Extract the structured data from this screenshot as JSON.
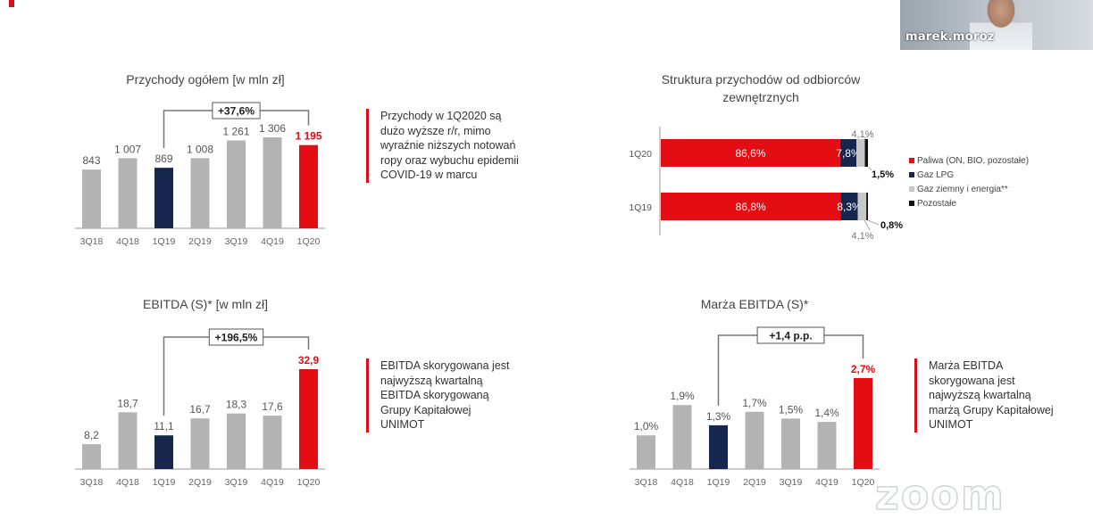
{
  "colors": {
    "grey": "#b3b3b3",
    "navy": "#17264f",
    "red": "#e30d13",
    "lightgrey": "#c8c8c8",
    "black": "#111111"
  },
  "camera": {
    "name": "marek.moroz"
  },
  "watermark": "zoom",
  "chart_data": [
    {
      "type": "bar",
      "title": "Przychody ogółem [w mln zł]",
      "categories": [
        "3Q18",
        "4Q18",
        "1Q19",
        "2Q19",
        "3Q19",
        "4Q19",
        "1Q20"
      ],
      "values": [
        843,
        1007,
        869,
        1008,
        1261,
        1306,
        1195
      ],
      "labels": [
        "843",
        "1 007",
        "869",
        "1 008",
        "1 261",
        "1 306",
        "1 195"
      ],
      "highlight": {
        "navy": 2,
        "red": 6
      },
      "annotation": "+37,6%",
      "callout": [
        "Przychody w 1Q2020 są",
        "dużo wyższe r/r, mimo",
        "wyraźnie niższych notowań",
        "ropy oraz wybuchu epidemii",
        "COVID-19 w marcu"
      ]
    },
    {
      "type": "stacked-bar-horizontal",
      "title": [
        "Struktura przychodów od odbiorców",
        "zewnętrznych"
      ],
      "categories": [
        "1Q20",
        "1Q19"
      ],
      "series": [
        {
          "name": "Paliwa (ON, BIO, pozostałe)",
          "values": [
            86.6,
            86.8
          ],
          "labels": [
            "86,6%",
            "86,8%"
          ]
        },
        {
          "name": "Gaz LPG",
          "values": [
            7.8,
            8.3
          ],
          "labels": [
            "7,8%",
            "8,3%"
          ]
        },
        {
          "name": "Gaz ziemny i energia**",
          "values": [
            4.1,
            4.1
          ],
          "labels": [
            "4,1%",
            "4,1%"
          ]
        },
        {
          "name": "Pozostałe",
          "values": [
            1.5,
            0.8
          ],
          "labels": [
            "1,5%",
            "0,8%"
          ]
        }
      ]
    },
    {
      "type": "bar",
      "title": "EBITDA (S)* [w mln zł]",
      "categories": [
        "3Q18",
        "4Q18",
        "1Q19",
        "2Q19",
        "3Q19",
        "4Q19",
        "1Q20"
      ],
      "values": [
        8.2,
        18.7,
        11.1,
        16.7,
        18.3,
        17.6,
        32.9
      ],
      "labels": [
        "8,2",
        "18,7",
        "11,1",
        "16,7",
        "18,3",
        "17,6",
        "32,9"
      ],
      "highlight": {
        "navy": 2,
        "red": 6
      },
      "annotation": "+196,5%",
      "callout": [
        "EBITDA skorygowana jest",
        "najwyższą kwartalną",
        "EBITDA skorygowaną",
        "Grupy Kapitałowej",
        "UNIMOT"
      ]
    },
    {
      "type": "bar",
      "title": "Marża EBITDA (S)*",
      "categories": [
        "3Q18",
        "4Q18",
        "1Q19",
        "2Q19",
        "3Q19",
        "4Q19",
        "1Q20"
      ],
      "values": [
        1.0,
        1.9,
        1.3,
        1.7,
        1.5,
        1.4,
        2.7
      ],
      "labels": [
        "1,0%",
        "1,9%",
        "1,3%",
        "1,7%",
        "1,5%",
        "1,4%",
        "2,7%"
      ],
      "highlight": {
        "navy": 2,
        "red": 6
      },
      "annotation": "+1,4 p.p.",
      "callout": [
        "Marża EBITDA",
        "skorygowana jest",
        "najwyższą kwartalną",
        "marżą Grupy Kapitałowej",
        "UNIMOT"
      ]
    }
  ]
}
